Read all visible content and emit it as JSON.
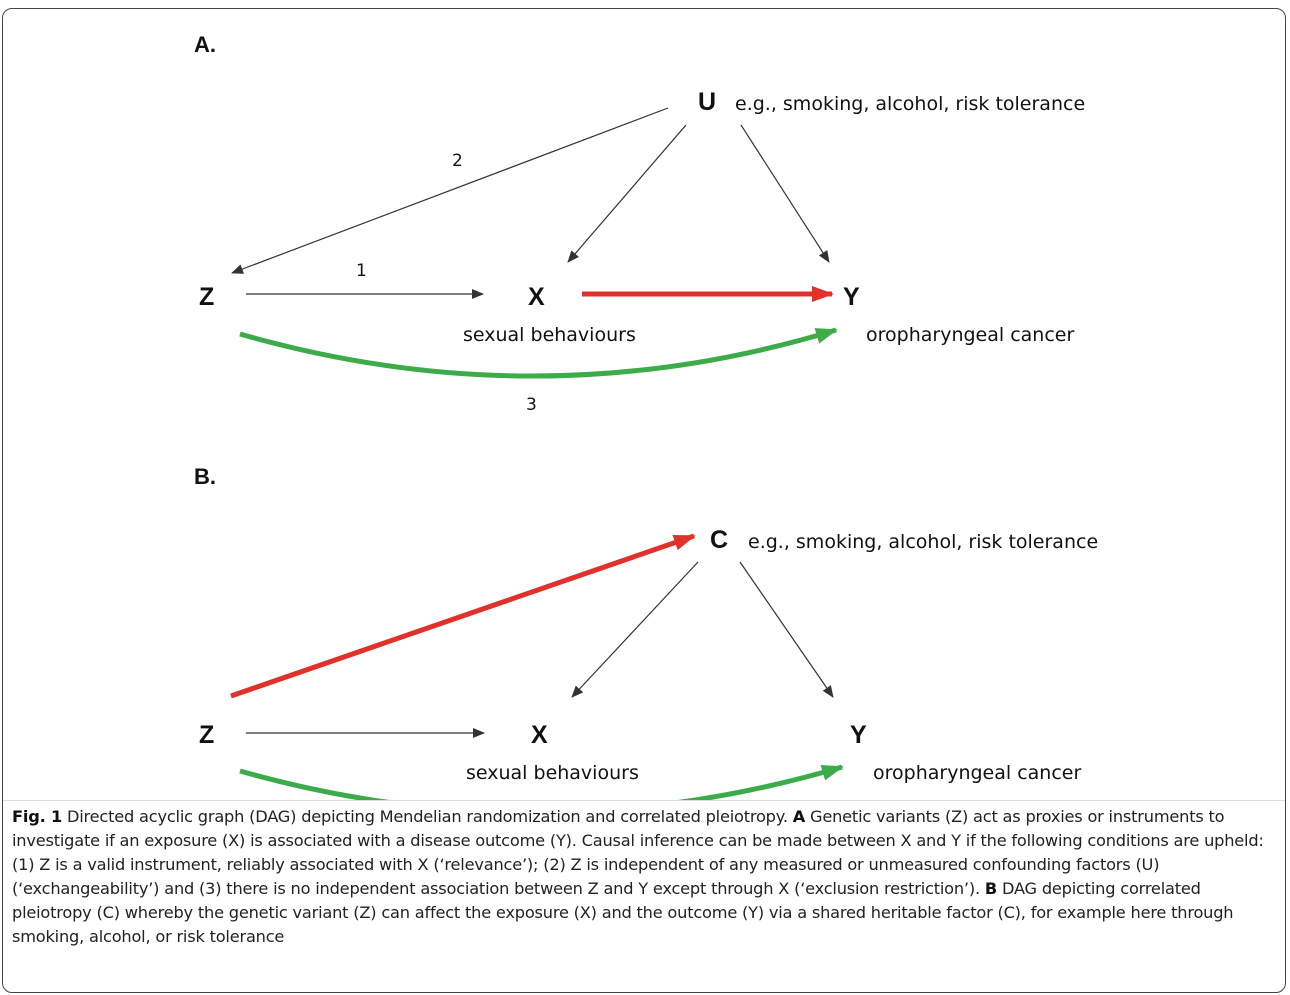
{
  "panel_a": {
    "label": "A.",
    "nodes": {
      "u": {
        "letter": "U",
        "label": "e.g., smoking, alcohol, risk tolerance"
      },
      "z": {
        "letter": "Z",
        "label": ""
      },
      "x": {
        "letter": "X",
        "label": "sexual behaviours"
      },
      "y": {
        "letter": "Y",
        "label": "oropharyngeal cancer"
      }
    },
    "path_labels": {
      "one": "1",
      "two": "2",
      "three": "3"
    }
  },
  "panel_b": {
    "label": "B.",
    "nodes": {
      "c": {
        "letter": "C",
        "label": "e.g., smoking, alcohol, risk tolerance"
      },
      "z": {
        "letter": "Z",
        "label": ""
      },
      "x": {
        "letter": "X",
        "label": "sexual behaviours"
      },
      "y": {
        "letter": "Y",
        "label": "oropharyngeal cancer"
      }
    }
  },
  "colors": {
    "red_arrow": "#e0312b",
    "green_arrow": "#3cab4a",
    "thin_arrow": "#333333"
  },
  "caption": {
    "fig_label": "Fig. 1",
    "intro": "Directed acyclic graph (DAG) depicting Mendelian randomization and correlated pleiotropy.",
    "a_marker": "A",
    "a_text": "Genetic variants (Z) act as proxies or instruments to investigate if an exposure (X) is associated with a disease outcome (Y). Causal inference can be made between X and Y if the following conditions are upheld: (1) Z is a valid instrument, reliably associated with X (‘relevance’); (2) Z is independent of any measured or unmeasured confounding factors (U) (‘exchangeability’) and (3) there is no independent association between Z and Y except through X (‘exclusion restriction’).",
    "b_marker": "B",
    "b_text": "DAG depicting correlated pleiotropy (C) whereby the genetic variant (Z) can affect the exposure (X) and the outcome (Y) via a shared heritable factor (C), for example here through smoking, alcohol, or risk tolerance"
  }
}
